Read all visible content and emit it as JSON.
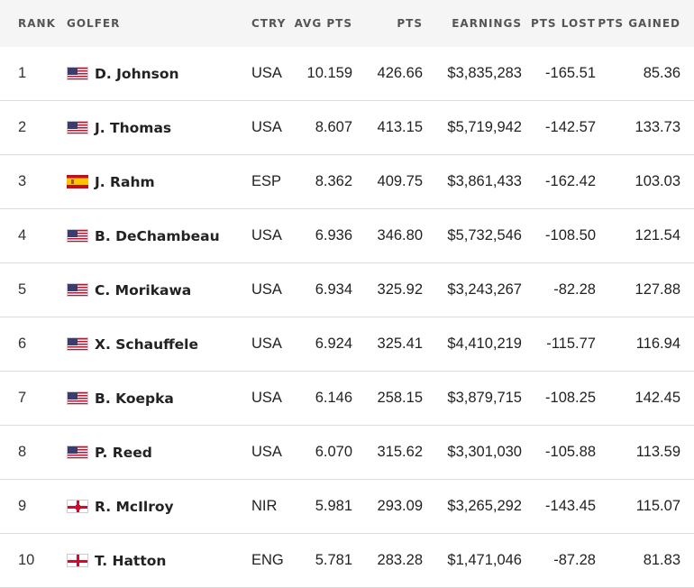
{
  "headers": {
    "rank": "RANK",
    "golfer": "GOLFER",
    "ctry": "CTRY",
    "avg_pts": "AVG PTS",
    "pts": "PTS",
    "earnings": "EARNINGS",
    "pts_lost": "PTS LOST",
    "pts_gained": "PTS GAINED"
  },
  "rows": [
    {
      "rank": "1",
      "flag": "usa",
      "golfer": "D. Johnson",
      "ctry": "USA",
      "avg_pts": "10.159",
      "pts": "426.66",
      "earnings": "$3,835,283",
      "pts_lost": "-165.51",
      "pts_gained": "85.36"
    },
    {
      "rank": "2",
      "flag": "usa",
      "golfer": "J. Thomas",
      "ctry": "USA",
      "avg_pts": "8.607",
      "pts": "413.15",
      "earnings": "$5,719,942",
      "pts_lost": "-142.57",
      "pts_gained": "133.73"
    },
    {
      "rank": "3",
      "flag": "esp",
      "golfer": "J. Rahm",
      "ctry": "ESP",
      "avg_pts": "8.362",
      "pts": "409.75",
      "earnings": "$3,861,433",
      "pts_lost": "-162.42",
      "pts_gained": "103.03"
    },
    {
      "rank": "4",
      "flag": "usa",
      "golfer": "B. DeChambeau",
      "ctry": "USA",
      "avg_pts": "6.936",
      "pts": "346.80",
      "earnings": "$5,732,546",
      "pts_lost": "-108.50",
      "pts_gained": "121.54"
    },
    {
      "rank": "5",
      "flag": "usa",
      "golfer": "C. Morikawa",
      "ctry": "USA",
      "avg_pts": "6.934",
      "pts": "325.92",
      "earnings": "$3,243,267",
      "pts_lost": "-82.28",
      "pts_gained": "127.88"
    },
    {
      "rank": "6",
      "flag": "usa",
      "golfer": "X. Schauffele",
      "ctry": "USA",
      "avg_pts": "6.924",
      "pts": "325.41",
      "earnings": "$4,410,219",
      "pts_lost": "-115.77",
      "pts_gained": "116.94"
    },
    {
      "rank": "7",
      "flag": "usa",
      "golfer": "B. Koepka",
      "ctry": "USA",
      "avg_pts": "6.146",
      "pts": "258.15",
      "earnings": "$3,879,715",
      "pts_lost": "-108.25",
      "pts_gained": "142.45"
    },
    {
      "rank": "8",
      "flag": "usa",
      "golfer": "P. Reed",
      "ctry": "USA",
      "avg_pts": "6.070",
      "pts": "315.62",
      "earnings": "$3,301,030",
      "pts_lost": "-105.88",
      "pts_gained": "113.59"
    },
    {
      "rank": "9",
      "flag": "nir",
      "golfer": "R. McIlroy",
      "ctry": "NIR",
      "avg_pts": "5.981",
      "pts": "293.09",
      "earnings": "$3,265,292",
      "pts_lost": "-143.45",
      "pts_gained": "115.07"
    },
    {
      "rank": "10",
      "flag": "eng",
      "golfer": "T. Hatton",
      "ctry": "ENG",
      "avg_pts": "5.781",
      "pts": "283.28",
      "earnings": "$1,471,046",
      "pts_lost": "-87.28",
      "pts_gained": "81.83"
    }
  ]
}
